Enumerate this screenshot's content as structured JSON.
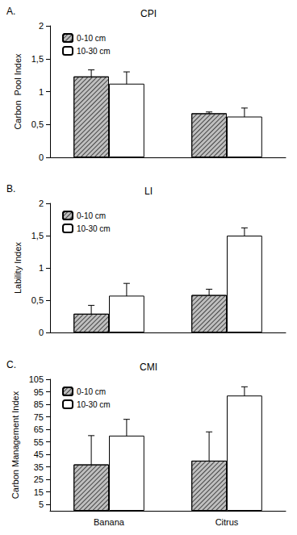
{
  "chart_data": [
    {
      "type": "bar",
      "title": "CPI",
      "annotations": [
        "A."
      ],
      "y_label": "Carbon  Pool Index",
      "categories": [
        "Banana",
        "Citrus"
      ],
      "series": [
        {
          "name": "0-10 cm",
          "color": "#bfbfbf",
          "values": [
            1.23,
            0.67
          ],
          "errors": [
            0.1,
            0.02
          ]
        },
        {
          "name": "10-30 cm",
          "color": "#ffffff",
          "values": [
            1.12,
            0.62
          ],
          "errors": [
            0.18,
            0.13
          ]
        }
      ],
      "ylim": [
        0,
        2
      ],
      "yticks": [
        0,
        {
          "value": 0.5,
          "label": "0,5"
        },
        1,
        {
          "value": 1.5,
          "label": "1,5"
        },
        2
      ],
      "grid": false,
      "legend": "top-left",
      "tick_labels": "y"
    },
    {
      "type": "bar",
      "title": "LI",
      "annotations": [
        "B."
      ],
      "y_label": "Lability Index",
      "categories": [
        "Banana",
        "Citrus"
      ],
      "series": [
        {
          "name": "0-10 cm",
          "color": "#bfbfbf",
          "values": [
            0.29,
            0.58
          ],
          "errors": [
            0.13,
            0.09
          ]
        },
        {
          "name": "10-30 cm",
          "color": "#ffffff",
          "values": [
            0.57,
            1.5
          ],
          "errors": [
            0.19,
            0.12
          ]
        }
      ],
      "ylim": [
        0,
        2
      ],
      "yticks": [
        0,
        {
          "value": 0.5,
          "label": "0,5"
        },
        1,
        {
          "value": 1.5,
          "label": "1,5"
        },
        2
      ],
      "grid": false,
      "legend": "top-left",
      "tick_labels": "y"
    },
    {
      "type": "bar",
      "title": "CMI",
      "annotations": [
        "C."
      ],
      "y_label": "Carbon Management Index",
      "categories": [
        "Banana",
        "Citrus"
      ],
      "series": [
        {
          "name": "0-10 cm",
          "color": "#bfbfbf",
          "values": [
            37,
            40
          ],
          "errors": [
            23,
            23
          ]
        },
        {
          "name": "10-30 cm",
          "color": "#ffffff",
          "values": [
            60,
            92
          ],
          "errors": [
            13,
            7
          ]
        }
      ],
      "ylim": [
        0,
        105
      ],
      "yticks": [
        5,
        15,
        25,
        35,
        45,
        55,
        65,
        75,
        85,
        95,
        105
      ],
      "grid": false,
      "legend": "top-left"
    }
  ]
}
